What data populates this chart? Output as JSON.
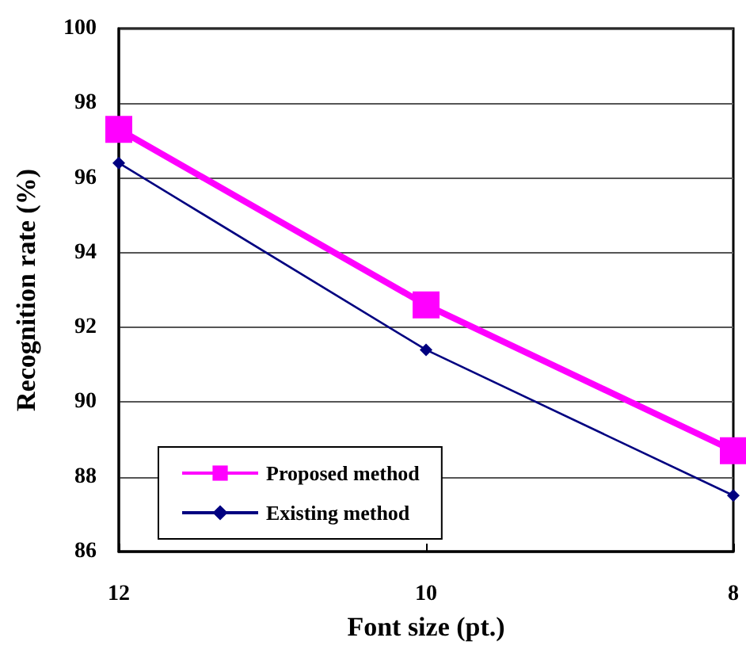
{
  "chart_data": {
    "type": "line",
    "xlabel": "Font size (pt.)",
    "ylabel": "Recognition rate (%)",
    "categories": [
      "12",
      "10",
      "8"
    ],
    "series": [
      {
        "name": "Proposed method",
        "color": "#ff00ff",
        "values": [
          97.3,
          92.6,
          88.7
        ],
        "marker": "square"
      },
      {
        "name": "Existing method",
        "color": "#000080",
        "values": [
          96.4,
          91.4,
          87.5
        ],
        "marker": "diamond"
      }
    ],
    "ylim": [
      86,
      100
    ],
    "yticks": [
      86,
      88,
      90,
      92,
      94,
      96,
      98,
      100
    ],
    "grid": "y",
    "legend": "bottom left"
  }
}
